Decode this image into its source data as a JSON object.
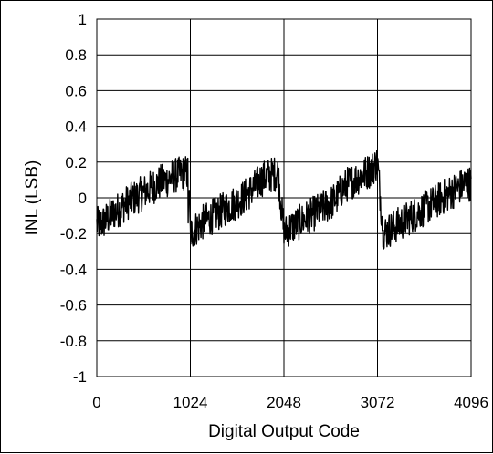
{
  "chart_data": {
    "type": "line",
    "title": "",
    "xlabel": "Digital Output Code",
    "ylabel": "INL (LSB)",
    "xlim": [
      0,
      4096
    ],
    "ylim": [
      -1,
      1
    ],
    "x_ticks": [
      0,
      1024,
      2048,
      3072,
      4096
    ],
    "x_tick_labels": [
      "0",
      "1024",
      "2048",
      "3072",
      "4096"
    ],
    "y_ticks": [
      1,
      0.8,
      0.6,
      0.4,
      0.2,
      0,
      -0.2,
      -0.4,
      -0.6,
      -0.8,
      -1
    ],
    "y_tick_labels": [
      "1",
      "0.8",
      "0.6",
      "0.4",
      "0.2",
      "0",
      "-0.2",
      "-0.4",
      "-0.6",
      "-0.8",
      "-1"
    ],
    "grid": true,
    "legend": "none",
    "line_color": "#000000",
    "series": [
      {
        "x": [
          0,
          64,
          128,
          192,
          256,
          320,
          384,
          448,
          512,
          576,
          640,
          704,
          768,
          832,
          896,
          960,
          1000,
          1024,
          1088,
          1152,
          1216,
          1280,
          1344,
          1408,
          1472,
          1536,
          1600,
          1664,
          1728,
          1792,
          1856,
          1920,
          1984,
          2048,
          2112,
          2176,
          2240,
          2304,
          2368,
          2432,
          2496,
          2560,
          2624,
          2688,
          2752,
          2816,
          2880,
          2944,
          3008,
          3072,
          3136,
          3200,
          3264,
          3328,
          3392,
          3456,
          3520,
          3584,
          3648,
          3712,
          3776,
          3840,
          3904,
          3968,
          4032,
          4096
        ],
        "values": [
          -0.15,
          -0.14,
          -0.11,
          -0.08,
          -0.06,
          -0.03,
          -0.01,
          0.01,
          0.03,
          0.05,
          0.07,
          0.09,
          0.1,
          0.12,
          0.13,
          0.14,
          0.14,
          -0.2,
          -0.17,
          -0.14,
          -0.12,
          -0.1,
          -0.08,
          -0.06,
          -0.04,
          -0.02,
          0.0,
          0.03,
          0.06,
          0.1,
          0.12,
          0.13,
          0.14,
          -0.2,
          -0.17,
          -0.15,
          -0.13,
          -0.11,
          -0.09,
          -0.07,
          -0.05,
          -0.03,
          0.0,
          0.05,
          0.08,
          0.1,
          0.12,
          0.14,
          0.16,
          0.2,
          -0.2,
          -0.18,
          -0.16,
          -0.14,
          -0.12,
          -0.1,
          -0.08,
          -0.06,
          -0.04,
          -0.02,
          0.0,
          0.02,
          0.04,
          0.06,
          0.08,
          0.08
        ],
        "noise_amplitude": 0.1
      }
    ]
  }
}
